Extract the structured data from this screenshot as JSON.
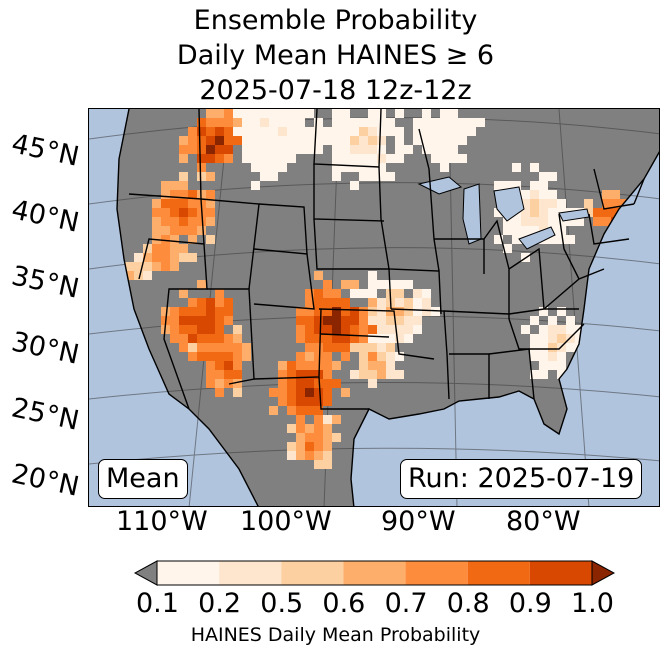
{
  "title": {
    "line1": "Ensemble Probability",
    "line2": "Daily Mean HAINES ≥ 6",
    "line3": "2025-07-18 12z-12z"
  },
  "map": {
    "left_box": "Mean",
    "right_box": "Run: 2025-07-19",
    "lat_labels": [
      "45°N",
      "40°N",
      "35°N",
      "30°N",
      "25°N",
      "20°N"
    ],
    "lon_labels": [
      "110°W",
      "100°W",
      "90°W",
      "80°W"
    ],
    "colors": {
      "ocean": "#b0c4de",
      "land_no_data": "#808080"
    }
  },
  "colorbar": {
    "title": "HAINES Daily Mean Probability",
    "tick_labels": [
      "0.1",
      "0.2",
      "0.5",
      "0.6",
      "0.7",
      "0.8",
      "0.9",
      "1.0"
    ],
    "under_color": "#808080",
    "over_color": "#8b2500",
    "bin_colors": [
      "#fff5eb",
      "#fee6ce",
      "#fdd0a2",
      "#fdae6b",
      "#fd8d3c",
      "#f16913",
      "#d94801"
    ]
  }
}
